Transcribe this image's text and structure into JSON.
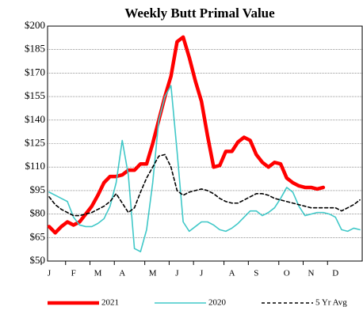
{
  "chart_data": {
    "type": "line",
    "title": "Weekly Butt Primal Value",
    "categories": [
      "J",
      null,
      null,
      null,
      "F",
      null,
      null,
      null,
      "M",
      null,
      null,
      null,
      "A",
      null,
      null,
      null,
      null,
      "M",
      null,
      null,
      null,
      "J",
      null,
      null,
      null,
      "J",
      null,
      null,
      null,
      null,
      "A",
      null,
      null,
      null,
      "S",
      null,
      null,
      null,
      null,
      "O",
      null,
      null,
      null,
      "N",
      null,
      null,
      null,
      "D",
      null,
      null,
      null,
      null
    ],
    "series": [
      {
        "name": "2021",
        "color": "#ff0000",
        "dash": false,
        "values": [
          72,
          68,
          72,
          75,
          73,
          75,
          80,
          85,
          92,
          100,
          104,
          104,
          105,
          108,
          108,
          112,
          112,
          125,
          140,
          155,
          168,
          190,
          193,
          180,
          165,
          152,
          130,
          110,
          111,
          120,
          120,
          126,
          129,
          127,
          118,
          113,
          110,
          113,
          112,
          103,
          100,
          98,
          97,
          97,
          96,
          97,
          null,
          null,
          null,
          null,
          null,
          null
        ]
      },
      {
        "name": "2020",
        "color": "#40c8c8",
        "dash": false,
        "values": [
          94,
          92,
          90,
          88,
          78,
          73,
          72,
          72,
          74,
          77,
          85,
          100,
          127,
          105,
          58,
          56,
          70,
          100,
          140,
          155,
          162,
          120,
          75,
          69,
          72,
          75,
          75,
          73,
          70,
          69,
          71,
          74,
          78,
          82,
          82,
          79,
          81,
          84,
          90,
          97,
          94,
          85,
          79,
          80,
          81,
          81,
          80,
          78,
          70,
          69,
          71,
          70
        ]
      },
      {
        "name": "5 Yr Avg",
        "color": "#000000",
        "dash": true,
        "values": [
          91,
          86,
          83,
          81,
          79,
          79,
          80,
          81,
          83,
          85,
          88,
          93,
          87,
          81,
          84,
          94,
          103,
          110,
          117,
          118,
          110,
          95,
          92,
          94,
          95,
          96,
          95,
          93,
          90,
          88,
          87,
          87,
          89,
          91,
          93,
          93,
          92,
          90,
          89,
          88,
          87,
          86,
          85,
          84,
          84,
          84,
          84,
          84,
          82,
          84,
          86,
          89
        ]
      }
    ],
    "ylim": [
      50,
      200
    ],
    "yticks": [
      {
        "value": 50,
        "label": "$50"
      },
      {
        "value": 65,
        "label": "$65"
      },
      {
        "value": 80,
        "label": "$80"
      },
      {
        "value": 95,
        "label": "$95"
      },
      {
        "value": 110,
        "label": "$110"
      },
      {
        "value": 125,
        "label": "$125"
      },
      {
        "value": 140,
        "label": "$140"
      },
      {
        "value": 155,
        "label": "$155"
      },
      {
        "value": 170,
        "label": "$170"
      },
      {
        "value": 185,
        "label": "$185"
      },
      {
        "value": 200,
        "label": "$200"
      }
    ],
    "grid": true
  }
}
